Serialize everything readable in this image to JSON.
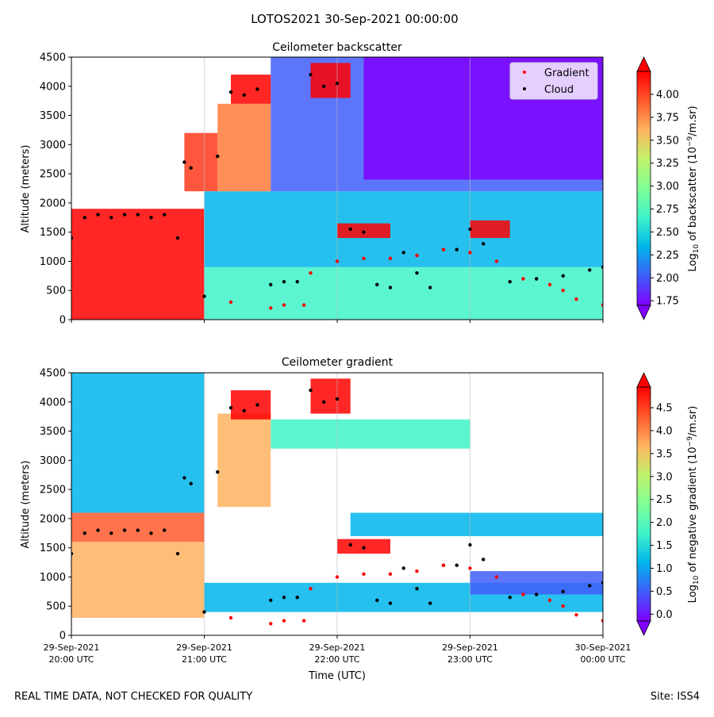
{
  "suptitle": "LOTOS2021 30-Sep-2021 00:00:00",
  "footer_left": "REAL TIME DATA, NOT CHECKED FOR QUALITY",
  "footer_right": "Site: ISS4",
  "colors": {
    "cloud": "#000000",
    "gradient": "#ff0000",
    "colormap": [
      "#7f00ff",
      "#3f5dfa",
      "#00b5eb",
      "#3ff3c9",
      "#80ff95",
      "#c0f36b",
      "#ffb360",
      "#ff5a2d",
      "#ff0000"
    ]
  },
  "chart_data": [
    {
      "type": "heatmap",
      "title": "Ceilometer backscatter",
      "ylabel": "Altitude (meters)",
      "xlabel": "",
      "ylim": [
        0,
        4500
      ],
      "y_ticks": [
        "0",
        "500",
        "1000",
        "1500",
        "2000",
        "2500",
        "3000",
        "3500",
        "4000",
        "4500"
      ],
      "x_range": [
        "29-Sep-2021 20:00 UTC",
        "30-Sep-2021 00:00 UTC"
      ],
      "colorbar_label": "Log10 of backscatter (10^-9/m.sr)",
      "colorbar_ticks": [
        "1.75",
        "2.00",
        "2.25",
        "2.50",
        "2.75",
        "3.00",
        "3.25",
        "3.50",
        "3.75",
        "4.00"
      ],
      "colorbar_range": [
        1.7,
        4.25
      ],
      "legend": {
        "position": "upper right",
        "entries": [
          "Gradient",
          "Cloud"
        ]
      },
      "series": [
        {
          "name": "Cloud",
          "points": [
            [
              0.0,
              1400
            ],
            [
              0.1,
              1750
            ],
            [
              0.2,
              1800
            ],
            [
              0.3,
              1750
            ],
            [
              0.4,
              1800
            ],
            [
              0.5,
              1800
            ],
            [
              0.6,
              1750
            ],
            [
              0.7,
              1800
            ],
            [
              0.8,
              1400
            ],
            [
              0.85,
              2700
            ],
            [
              0.9,
              2600
            ],
            [
              1.0,
              400
            ],
            [
              1.1,
              2800
            ],
            [
              1.2,
              3900
            ],
            [
              1.3,
              3850
            ],
            [
              1.4,
              3950
            ],
            [
              1.5,
              600
            ],
            [
              1.6,
              650
            ],
            [
              1.7,
              650
            ],
            [
              1.8,
              4200
            ],
            [
              1.9,
              4000
            ],
            [
              2.0,
              4050
            ],
            [
              2.1,
              1550
            ],
            [
              2.2,
              1500
            ],
            [
              2.3,
              600
            ],
            [
              2.4,
              550
            ],
            [
              2.5,
              1150
            ],
            [
              2.6,
              800
            ],
            [
              2.7,
              550
            ],
            [
              2.8,
              1200
            ],
            [
              2.9,
              1200
            ],
            [
              3.0,
              1550
            ],
            [
              3.1,
              1300
            ],
            [
              3.3,
              650
            ],
            [
              3.5,
              700
            ],
            [
              3.7,
              750
            ],
            [
              3.9,
              850
            ],
            [
              4.0,
              900
            ]
          ]
        },
        {
          "name": "Gradient",
          "points": [
            [
              1.2,
              300
            ],
            [
              1.5,
              200
            ],
            [
              1.6,
              250
            ],
            [
              1.75,
              250
            ],
            [
              1.8,
              800
            ],
            [
              2.0,
              1000
            ],
            [
              2.2,
              1050
            ],
            [
              2.4,
              1050
            ],
            [
              2.6,
              1100
            ],
            [
              2.8,
              1200
            ],
            [
              3.0,
              1150
            ],
            [
              3.2,
              1000
            ],
            [
              3.4,
              700
            ],
            [
              3.6,
              600
            ],
            [
              3.7,
              500
            ],
            [
              3.8,
              350
            ],
            [
              4.0,
              250
            ]
          ]
        }
      ]
    },
    {
      "type": "heatmap",
      "title": "Ceilometer gradient",
      "ylabel": "Altitude (meters)",
      "xlabel": "Time (UTC)",
      "ylim": [
        0,
        4500
      ],
      "y_ticks": [
        "0",
        "500",
        "1000",
        "1500",
        "2000",
        "2500",
        "3000",
        "3500",
        "4000",
        "4500"
      ],
      "x_ticks": [
        [
          "29-Sep-2021",
          "20:00 UTC"
        ],
        [
          "29-Sep-2021",
          "21:00 UTC"
        ],
        [
          "29-Sep-2021",
          "22:00 UTC"
        ],
        [
          "29-Sep-2021",
          "23:00 UTC"
        ],
        [
          "30-Sep-2021",
          "00:00 UTC"
        ]
      ],
      "colorbar_label": "Log10 of negative gradient (10^-9/m.sr)",
      "colorbar_ticks": [
        "0.0",
        "0.5",
        "1.0",
        "1.5",
        "2.0",
        "2.5",
        "3.0",
        "3.5",
        "4.0",
        "4.5"
      ],
      "colorbar_range": [
        -0.15,
        4.95
      ],
      "series": [
        {
          "name": "Cloud",
          "points": [
            [
              0.0,
              1400
            ],
            [
              0.1,
              1750
            ],
            [
              0.2,
              1800
            ],
            [
              0.3,
              1750
            ],
            [
              0.4,
              1800
            ],
            [
              0.5,
              1800
            ],
            [
              0.6,
              1750
            ],
            [
              0.7,
              1800
            ],
            [
              0.8,
              1400
            ],
            [
              0.85,
              2700
            ],
            [
              0.9,
              2600
            ],
            [
              1.0,
              400
            ],
            [
              1.1,
              2800
            ],
            [
              1.2,
              3900
            ],
            [
              1.3,
              3850
            ],
            [
              1.4,
              3950
            ],
            [
              1.5,
              600
            ],
            [
              1.6,
              650
            ],
            [
              1.7,
              650
            ],
            [
              1.8,
              4200
            ],
            [
              1.9,
              4000
            ],
            [
              2.0,
              4050
            ],
            [
              2.1,
              1550
            ],
            [
              2.2,
              1500
            ],
            [
              2.3,
              600
            ],
            [
              2.4,
              550
            ],
            [
              2.5,
              1150
            ],
            [
              2.6,
              800
            ],
            [
              2.7,
              550
            ],
            [
              2.8,
              1200
            ],
            [
              2.9,
              1200
            ],
            [
              3.0,
              1550
            ],
            [
              3.1,
              1300
            ],
            [
              3.3,
              650
            ],
            [
              3.5,
              700
            ],
            [
              3.7,
              750
            ],
            [
              3.9,
              850
            ],
            [
              4.0,
              900
            ]
          ]
        },
        {
          "name": "Gradient",
          "points": [
            [
              1.2,
              300
            ],
            [
              1.5,
              200
            ],
            [
              1.6,
              250
            ],
            [
              1.75,
              250
            ],
            [
              1.8,
              800
            ],
            [
              2.0,
              1000
            ],
            [
              2.2,
              1050
            ],
            [
              2.4,
              1050
            ],
            [
              2.6,
              1100
            ],
            [
              2.8,
              1200
            ],
            [
              3.0,
              1150
            ],
            [
              3.2,
              1000
            ],
            [
              3.4,
              700
            ],
            [
              3.6,
              600
            ],
            [
              3.7,
              500
            ],
            [
              3.8,
              350
            ],
            [
              4.0,
              250
            ]
          ]
        }
      ]
    }
  ]
}
